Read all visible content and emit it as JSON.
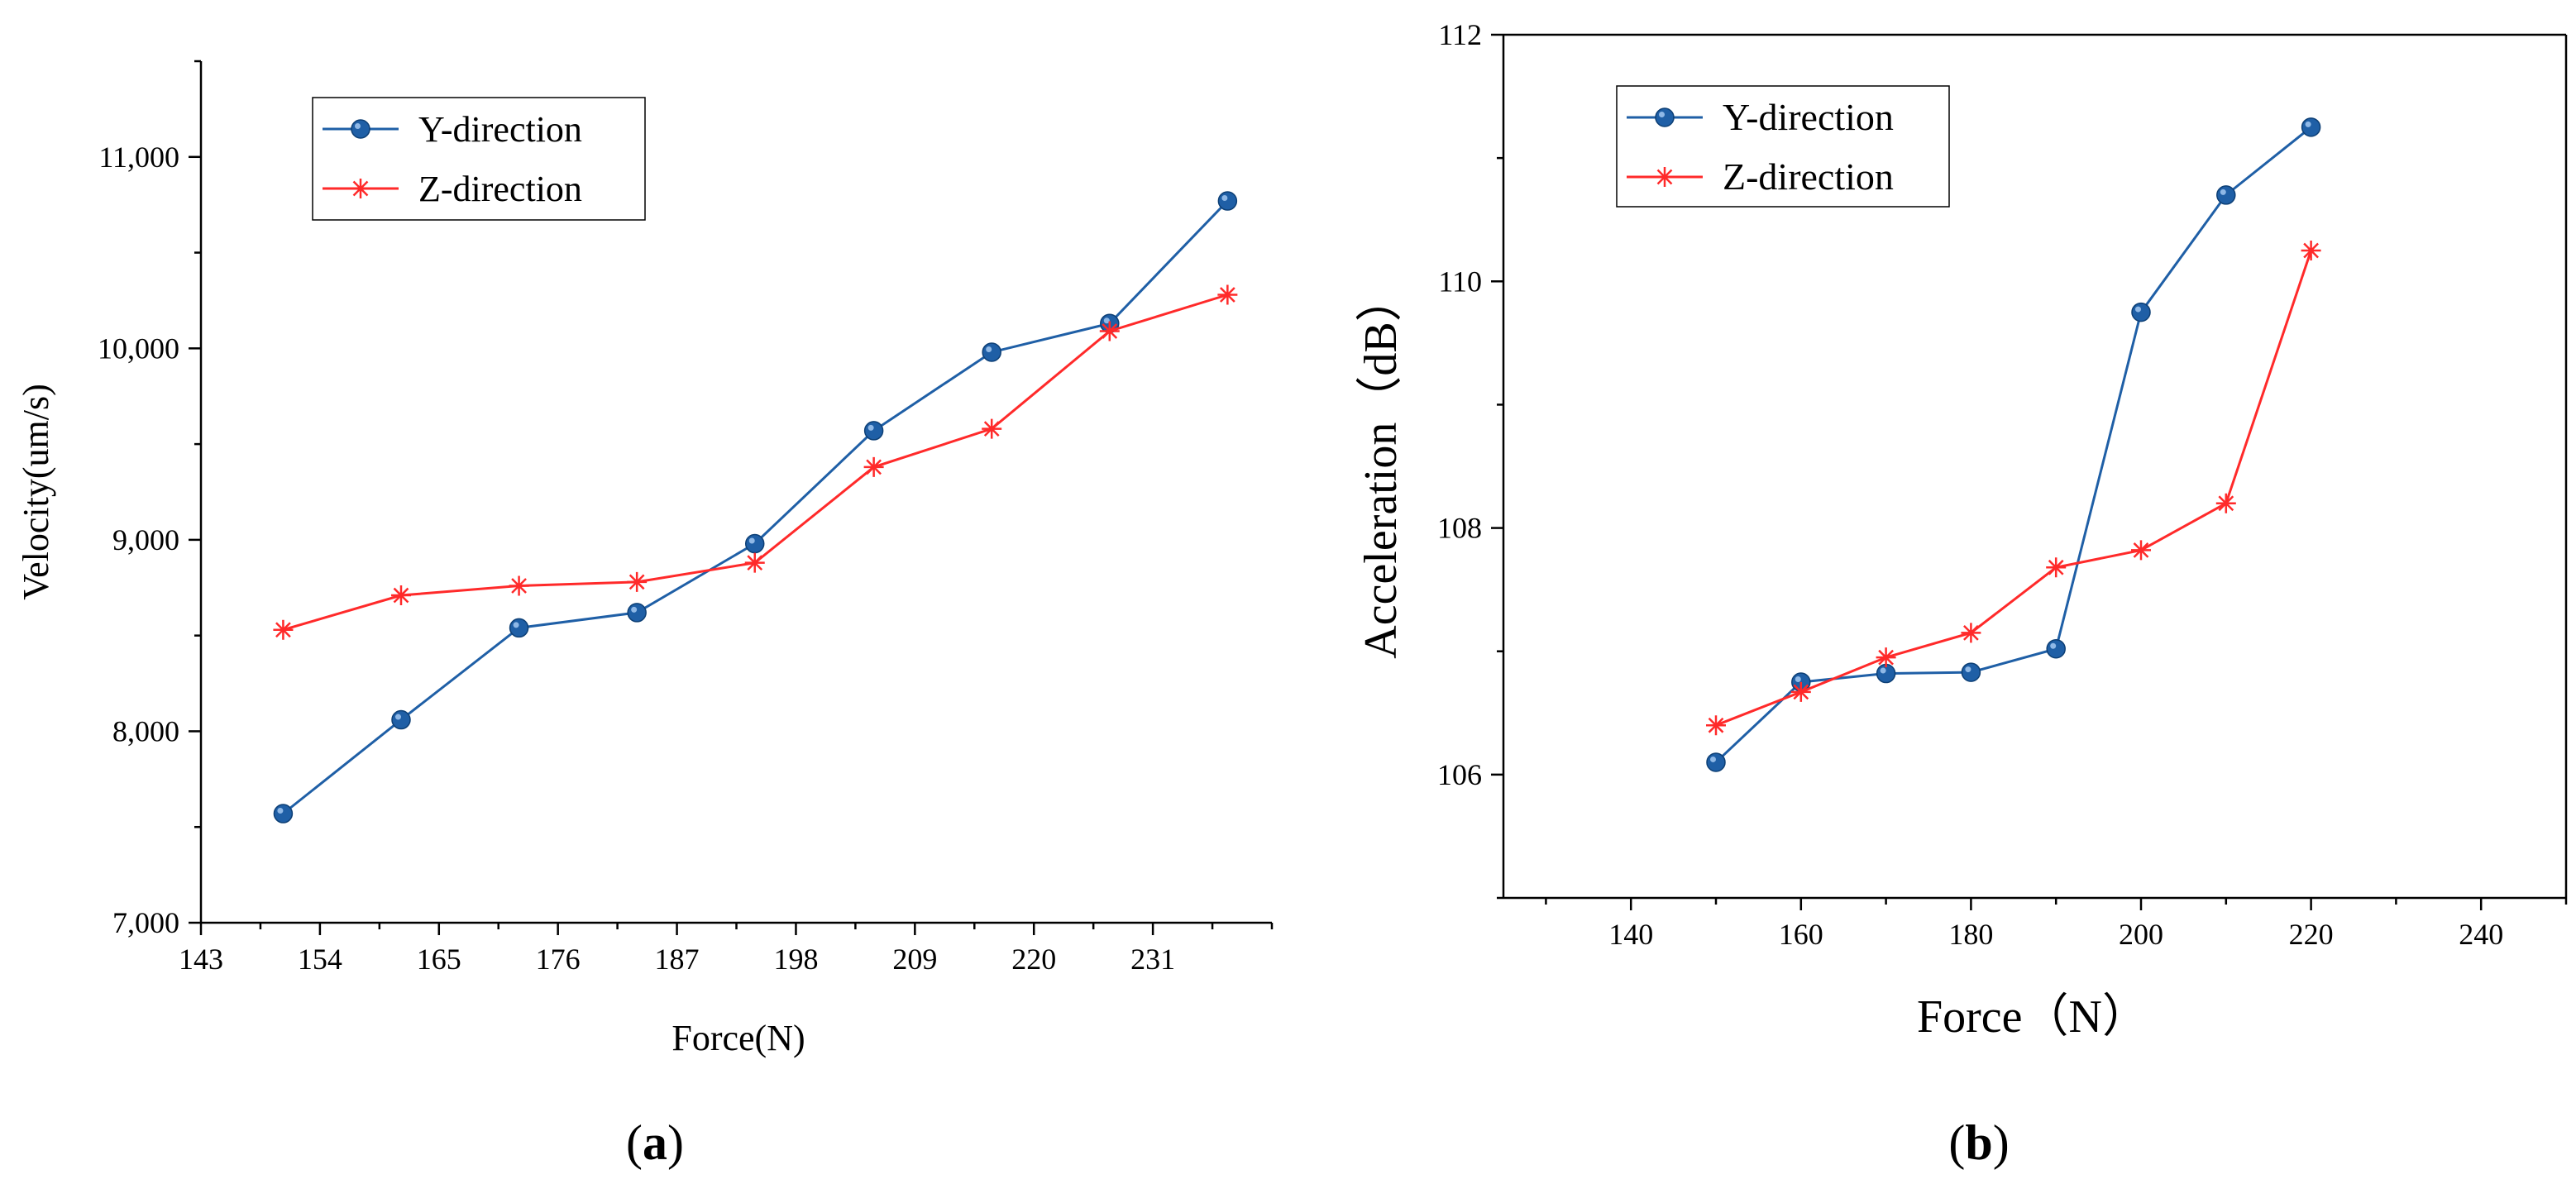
{
  "chart_data": [
    {
      "panel": "a",
      "type": "line",
      "panel_label": {
        "open": "(",
        "letter": "a",
        "close": ")"
      },
      "title": "",
      "xlabel": "Force(N)",
      "ylabel": "Velocity(um/s)",
      "xlim": [
        143,
        242
      ],
      "ylim": [
        7000,
        11500
      ],
      "xticks": [
        143,
        154,
        165,
        176,
        187,
        198,
        209,
        220,
        231
      ],
      "xtick_labels": [
        "143",
        "154",
        "165",
        "176",
        "187",
        "198",
        "209",
        "220",
        "231"
      ],
      "yticks": [
        7000,
        8000,
        9000,
        10000,
        11000
      ],
      "ytick_labels": [
        "7,000",
        "8,000",
        "9,000",
        "10,000",
        "11,000"
      ],
      "grid": false,
      "legend_position": "top-left",
      "series": [
        {
          "name": "Y-direction",
          "color": "#1f5fa6",
          "marker": "circle",
          "x": [
            150.6,
            161.5,
            172.4,
            183.3,
            194.2,
            205.2,
            216.1,
            227.0,
            237.9
          ],
          "y": [
            7570,
            8060,
            8540,
            8620,
            8980,
            9570,
            9980,
            10130,
            10770
          ]
        },
        {
          "name": "Z-direction",
          "color": "#ff2a2a",
          "marker": "asterisk",
          "x": [
            150.6,
            161.5,
            172.4,
            183.3,
            194.2,
            205.2,
            216.1,
            227.0,
            237.9
          ],
          "y": [
            8530,
            8710,
            8760,
            8780,
            8880,
            9380,
            9580,
            10090,
            10280
          ]
        }
      ]
    },
    {
      "panel": "b",
      "type": "line",
      "panel_label": {
        "open": "(",
        "letter": "b",
        "close": ")"
      },
      "title": "",
      "xlabel": "Force（N）",
      "ylabel": "Acceleration（dB）",
      "xlim": [
        125,
        250
      ],
      "ylim": [
        105,
        112
      ],
      "xticks": [
        140,
        160,
        180,
        200,
        220,
        240
      ],
      "xtick_labels": [
        "140",
        "160",
        "180",
        "200",
        "220",
        "240"
      ],
      "yticks": [
        106,
        108,
        110,
        112
      ],
      "ytick_labels": [
        "106",
        "108",
        "110",
        "112"
      ],
      "grid": false,
      "legend_position": "top-left",
      "series": [
        {
          "name": "Y-direction",
          "color": "#1f5fa6",
          "marker": "circle",
          "x": [
            150,
            160,
            170,
            180,
            190,
            200,
            210,
            220
          ],
          "y": [
            106.1,
            106.75,
            106.82,
            106.83,
            107.02,
            109.75,
            110.7,
            111.25
          ]
        },
        {
          "name": "Z-direction",
          "color": "#ff2a2a",
          "marker": "asterisk",
          "x": [
            150,
            160,
            170,
            180,
            190,
            200,
            210,
            220
          ],
          "y": [
            106.4,
            106.67,
            106.95,
            107.15,
            107.68,
            107.82,
            108.2,
            110.25
          ]
        }
      ]
    }
  ]
}
